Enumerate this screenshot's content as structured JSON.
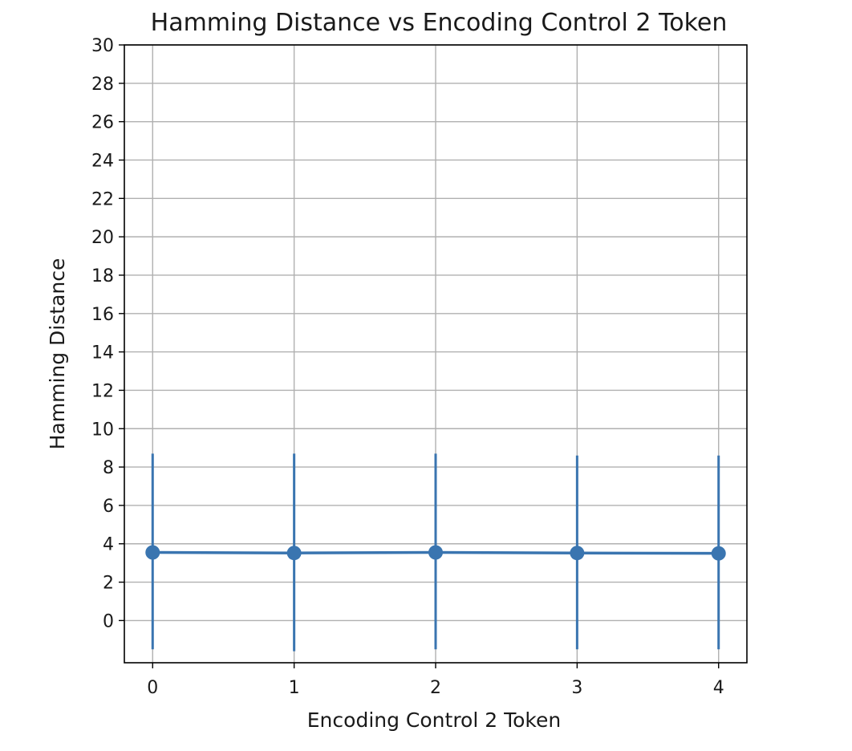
{
  "chart_data": {
    "type": "line",
    "title": "Hamming Distance vs Encoding Control 2 Token",
    "xlabel": "Encoding Control 2 Token",
    "ylabel": "Hamming Distance",
    "x": [
      0,
      1,
      2,
      3,
      4
    ],
    "xlim": [
      -0.2,
      4.2
    ],
    "ylim": [
      -2.2,
      30
    ],
    "x_ticks": [
      "0",
      "1",
      "2",
      "3",
      "4"
    ],
    "y_ticks": [
      "0",
      "2",
      "4",
      "6",
      "8",
      "10",
      "12",
      "14",
      "16",
      "18",
      "20",
      "22",
      "24",
      "26",
      "28",
      "30"
    ],
    "grid": true,
    "series": [
      {
        "values": [
          3.55,
          3.52,
          3.55,
          3.52,
          3.5
        ],
        "error_lower": [
          -1.5,
          -1.6,
          -1.5,
          -1.5,
          -1.5
        ],
        "error_upper": [
          8.7,
          8.7,
          8.7,
          8.6,
          8.6
        ],
        "color": "#3a75b0",
        "marker": "circle"
      }
    ],
    "colors": {
      "series": "#3a75b0",
      "grid": "#b0b0b0",
      "axes": "#000000"
    }
  }
}
